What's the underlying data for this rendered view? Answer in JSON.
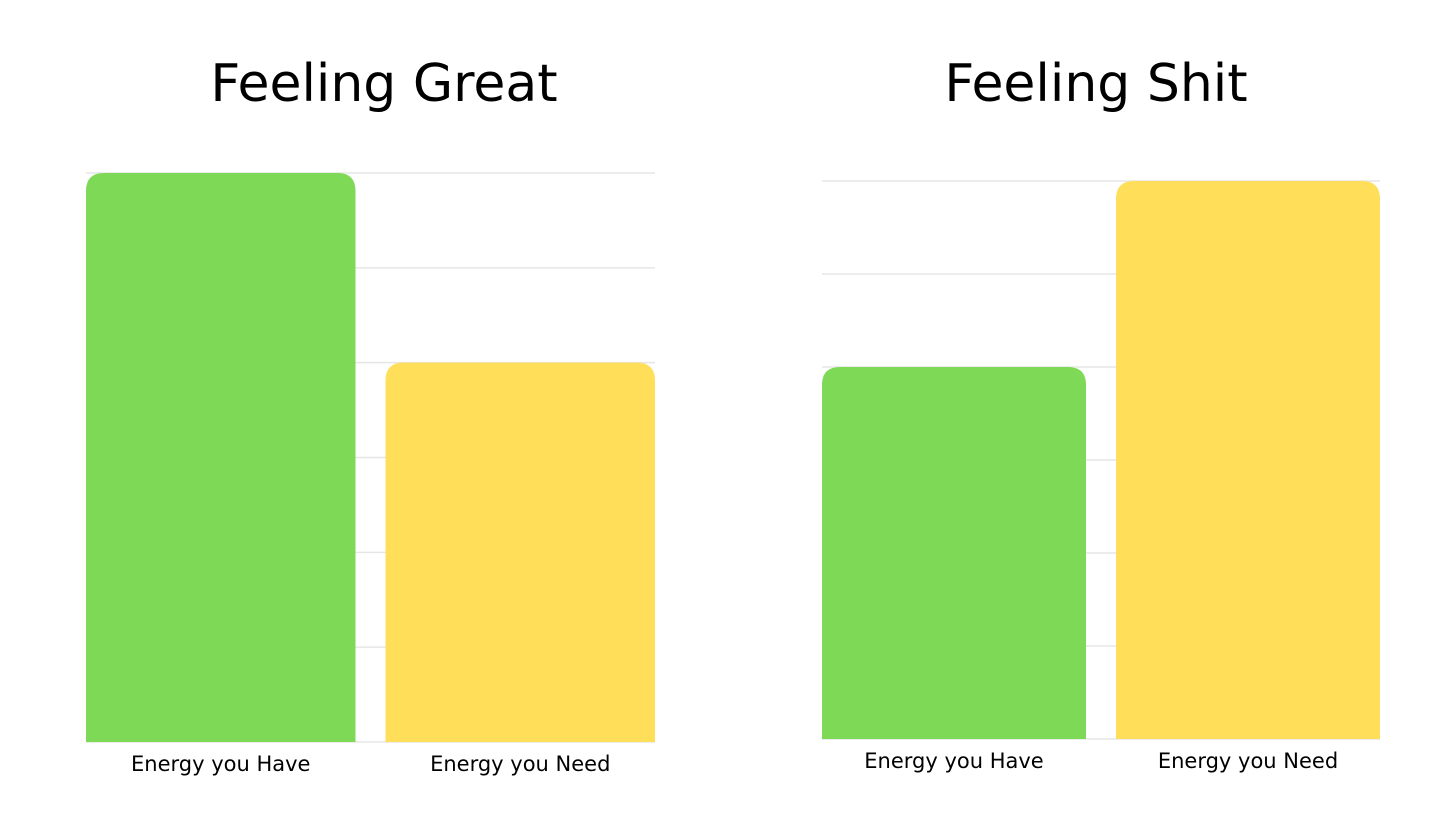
{
  "chart_data": [
    {
      "type": "bar",
      "title": "Feeling Great",
      "categories": [
        "Energy you Have",
        "Energy you Need"
      ],
      "values": [
        6,
        4
      ],
      "ylim": [
        0,
        6
      ],
      "grid": true,
      "colors": [
        "#7ED957",
        "#FFDE59"
      ],
      "gridline_color": "#e6e6e6"
    },
    {
      "type": "bar",
      "title": "Feeling Shit",
      "categories": [
        "Energy you Have",
        "Energy you Need"
      ],
      "values": [
        4,
        6
      ],
      "ylim": [
        0,
        6
      ],
      "grid": true,
      "colors": [
        "#7ED957",
        "#FFDE59"
      ],
      "gridline_color": "#e6e6e6"
    }
  ]
}
